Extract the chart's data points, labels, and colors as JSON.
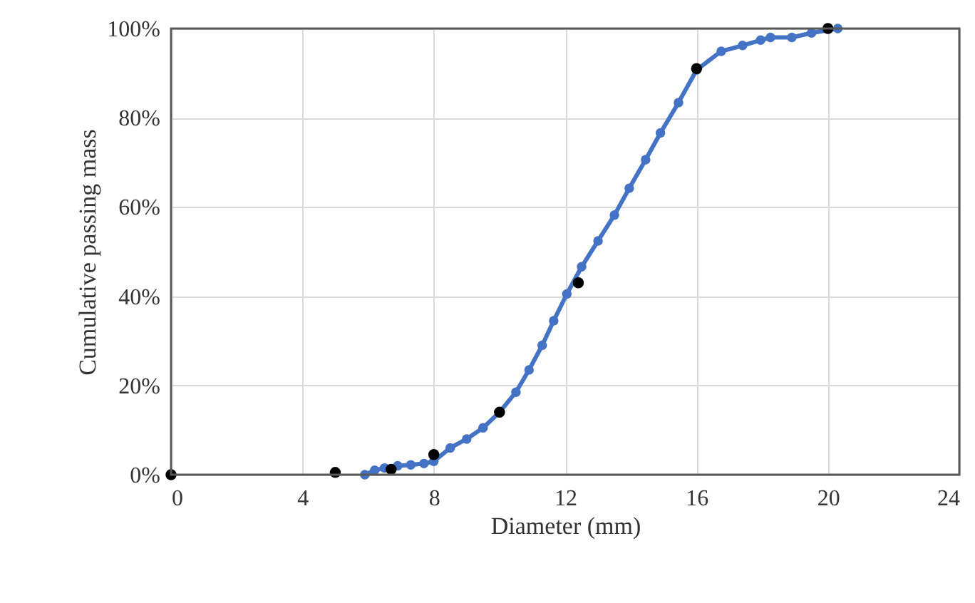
{
  "chart_data": {
    "type": "line",
    "xlabel": "Diameter (mm)",
    "ylabel": "Cumulative passing mass",
    "xlim": [
      0,
      24
    ],
    "xticks": [
      0,
      4,
      8,
      12,
      16,
      20,
      24
    ],
    "ylim": [
      0,
      100
    ],
    "yticks": [
      {
        "value": 0,
        "label": "0%"
      },
      {
        "value": 20,
        "label": "20%"
      },
      {
        "value": 40,
        "label": "40%"
      },
      {
        "value": 60,
        "label": "60%"
      },
      {
        "value": 80,
        "label": "80%"
      },
      {
        "value": 100,
        "label": "100%"
      }
    ],
    "grid": true,
    "marker": "circle",
    "line_style": "solid",
    "series": [
      {
        "type": "line",
        "color": "#4472c4",
        "x": [
          5.9,
          6.2,
          6.5,
          6.9,
          7.3,
          7.7,
          8.0,
          8.5,
          9.0,
          9.5,
          10.0,
          10.5,
          10.9,
          11.3,
          11.65,
          12.05,
          12.5,
          13.0,
          13.5,
          13.95,
          14.45,
          14.9,
          15.45,
          16.0,
          16.75,
          17.4,
          17.95,
          18.25,
          18.9,
          19.5,
          20.3
        ],
        "values": [
          0,
          1,
          1.5,
          2,
          2.2,
          2.5,
          3,
          6,
          8,
          10.5,
          14,
          18.5,
          23.5,
          29,
          34.5,
          40.5,
          46.6,
          52.4,
          58.2,
          64.2,
          70.6,
          76.6,
          83.4,
          90.7,
          94.9,
          96.2,
          97.4,
          98,
          98,
          99,
          100
        ]
      },
      {
        "type": "scatter",
        "color": "#000000",
        "x": [
          0,
          5,
          6.7,
          8,
          10,
          12.4,
          16,
          20
        ],
        "values": [
          0,
          0.5,
          1.2,
          4.5,
          14,
          43,
          91,
          100
        ]
      }
    ]
  }
}
